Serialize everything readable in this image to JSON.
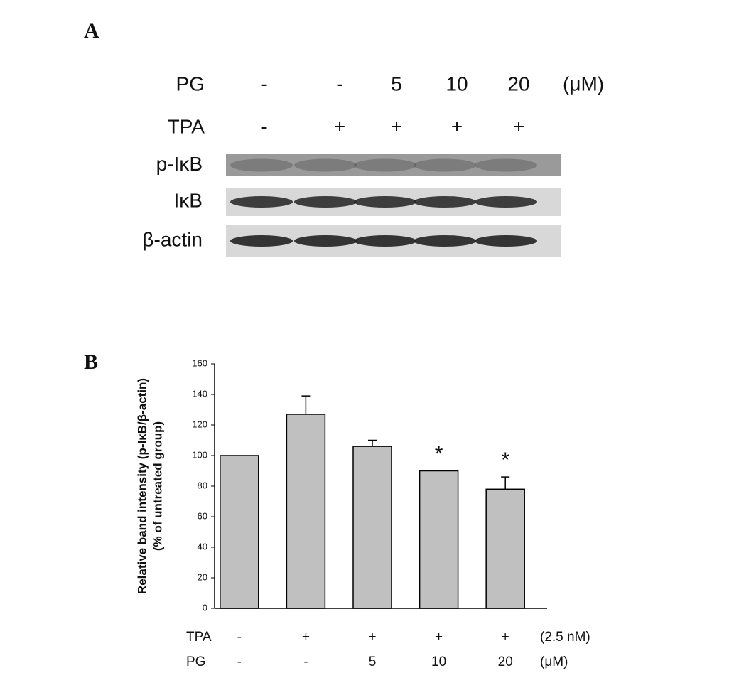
{
  "panel_a": {
    "label": "A",
    "rows": [
      {
        "name": "PG",
        "values": [
          "-",
          "-",
          "5",
          "10",
          "20"
        ],
        "unit": "(μM)"
      },
      {
        "name": "TPA",
        "values": [
          "-",
          "+",
          "+",
          "+",
          "+"
        ]
      }
    ],
    "blots": [
      "p-IκB",
      "IκB",
      "β-actin"
    ]
  },
  "chart_data": {
    "type": "bar",
    "label": "B",
    "ylabel": [
      "Relative band intensity (p-IκB/β-actin)",
      "(% of untreated group)"
    ],
    "categories": [
      null,
      null,
      null,
      null,
      null
    ],
    "values": [
      100,
      127,
      106,
      90,
      78
    ],
    "errors": [
      null,
      12,
      4,
      null,
      8
    ],
    "significance": [
      null,
      null,
      null,
      "*",
      "*"
    ],
    "color": "#c0c0c0",
    "ylim": [
      0,
      160
    ],
    "yticks": [
      0,
      20,
      40,
      60,
      80,
      100,
      120,
      140,
      160
    ],
    "treatments": [
      {
        "name": "TPA",
        "values": [
          "-",
          "+",
          "+",
          "+",
          "+"
        ],
        "unit": "(2.5 nM)"
      },
      {
        "name": "PG",
        "values": [
          "-",
          "-",
          "5",
          "10",
          "20"
        ],
        "unit": "(μM)"
      }
    ]
  }
}
